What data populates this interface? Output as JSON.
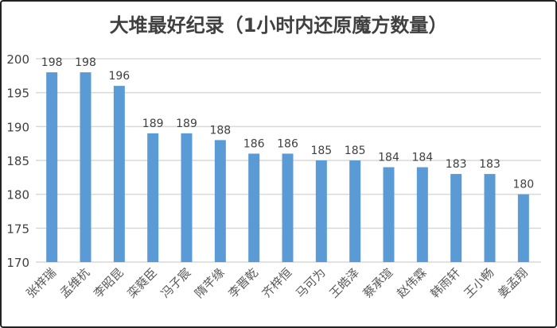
{
  "chart_data": {
    "type": "bar",
    "title": "大堆最好纪录（1小时内还原魔方数量）",
    "categories": [
      "张梓瑞",
      "孟维杭",
      "李昭昆",
      "栾蕤臣",
      "冯子宸",
      "隋芊缘",
      "李晋乾",
      "齐梓恒",
      "马可为",
      "王皓泽",
      "蔡承瑄",
      "赵伟霖",
      "韩雨轩",
      "王小畅",
      "姜孟翔"
    ],
    "values": [
      198,
      198,
      196,
      189,
      189,
      188,
      186,
      186,
      185,
      185,
      184,
      184,
      183,
      183,
      180
    ],
    "ylim": [
      170,
      200
    ],
    "yticks": [
      170,
      175,
      180,
      185,
      190,
      195,
      200
    ],
    "grid": true,
    "data_labels": true,
    "bar_color": "#5b9bd5"
  }
}
